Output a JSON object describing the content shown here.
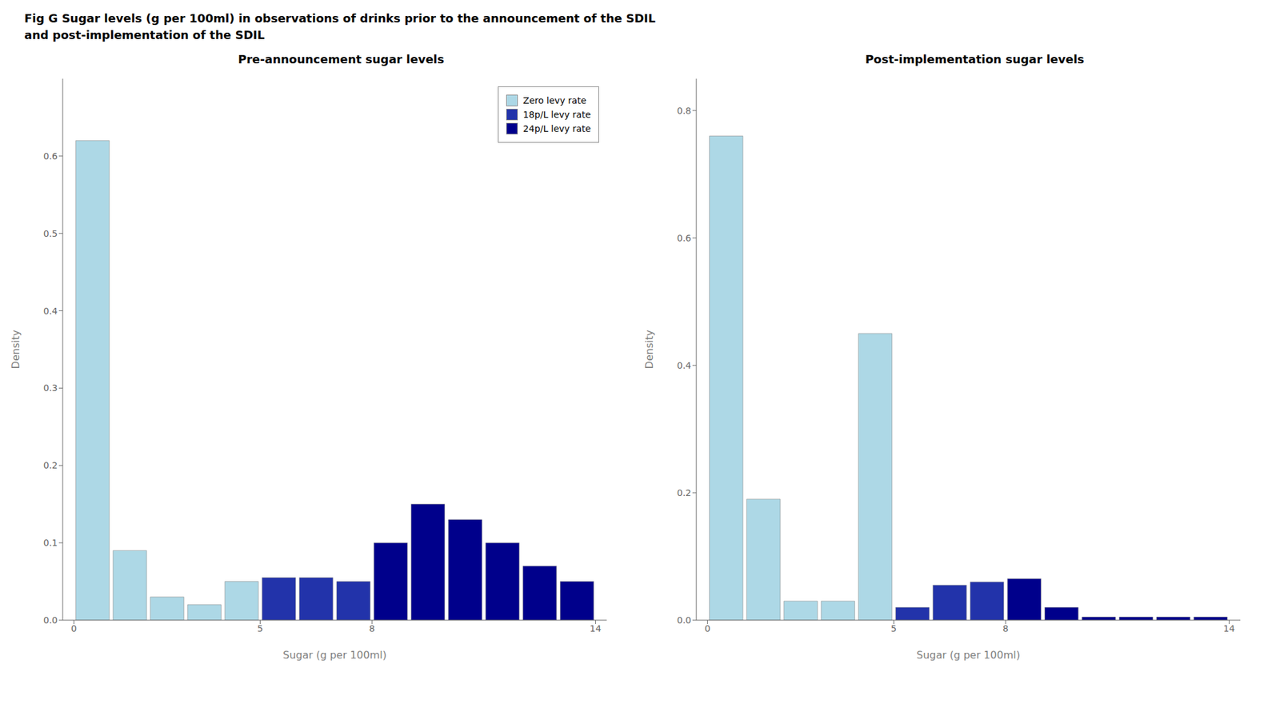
{
  "title": "Fig G Sugar levels (g per 100ml) in observations of drinks prior to the announcement of the SDIL\nand post-implementation of the SDIL",
  "chart_data": [
    {
      "type": "histogram",
      "title": "Pre-announcement sugar levels",
      "xlabel": "Sugar (g per 100ml)",
      "ylabel": "Density",
      "bins": [
        0,
        1,
        2,
        3,
        4,
        5,
        6,
        7,
        8,
        9,
        10,
        11,
        12,
        13,
        14,
        15
      ],
      "series": [
        {
          "name": "Zero levy rate",
          "color": "#add8e6",
          "values": [
            0.62,
            0.09,
            0.03,
            0.02,
            0.05,
            null,
            null,
            null,
            null,
            null,
            null,
            null,
            null,
            null,
            null
          ]
        },
        {
          "name": "18p/L levy rate",
          "color": "#2233aa",
          "values": [
            null,
            null,
            null,
            null,
            null,
            0.055,
            0.055,
            0.05,
            null,
            null,
            null,
            null,
            null,
            null,
            null
          ]
        },
        {
          "name": "24p/L levy rate",
          "color": "#00008b",
          "values": [
            null,
            null,
            null,
            null,
            null,
            null,
            null,
            null,
            0.1,
            0.15,
            0.13,
            0.1,
            0.07,
            0.05,
            0.0
          ]
        }
      ],
      "xlim": [
        -0.3,
        14.3
      ],
      "ylim": [
        0,
        0.7
      ],
      "xticks": [
        0,
        5,
        8,
        14
      ],
      "yticks": [
        {
          "value": 0.0,
          "label": "0.0"
        },
        0.1,
        0.2,
        0.3,
        0.4,
        0.5,
        0.6
      ],
      "legend": "upper right",
      "grid": false
    },
    {
      "type": "histogram",
      "title": "Post-implementation sugar levels",
      "xlabel": "Sugar (g per 100ml)",
      "ylabel": "Density",
      "bins": [
        0,
        1,
        2,
        3,
        4,
        5,
        6,
        7,
        8,
        9,
        10,
        11,
        12,
        13,
        14,
        15
      ],
      "values": [
        0.76,
        0.19,
        0.03,
        0.03,
        0.45,
        0.02,
        0.055,
        0.06,
        0.065,
        0.02,
        0.005,
        0.005,
        0.005,
        0.005,
        0.0
      ],
      "colors": [
        "#add8e6",
        "#add8e6",
        "#add8e6",
        "#add8e6",
        "#add8e6",
        "#2233aa",
        "#2233aa",
        "#2233aa",
        "#00008b",
        "#00008b",
        "#00008b",
        "#00008b",
        "#00008b",
        "#00008b",
        "#00008b"
      ],
      "xlim": [
        -0.3,
        14.3
      ],
      "ylim": [
        0,
        0.85
      ],
      "xticks": [
        0,
        5,
        8,
        14
      ],
      "yticks": [
        {
          "value": 0.0,
          "label": "0.0"
        },
        0.2,
        0.4,
        0.6,
        0.8
      ],
      "grid": false
    }
  ]
}
